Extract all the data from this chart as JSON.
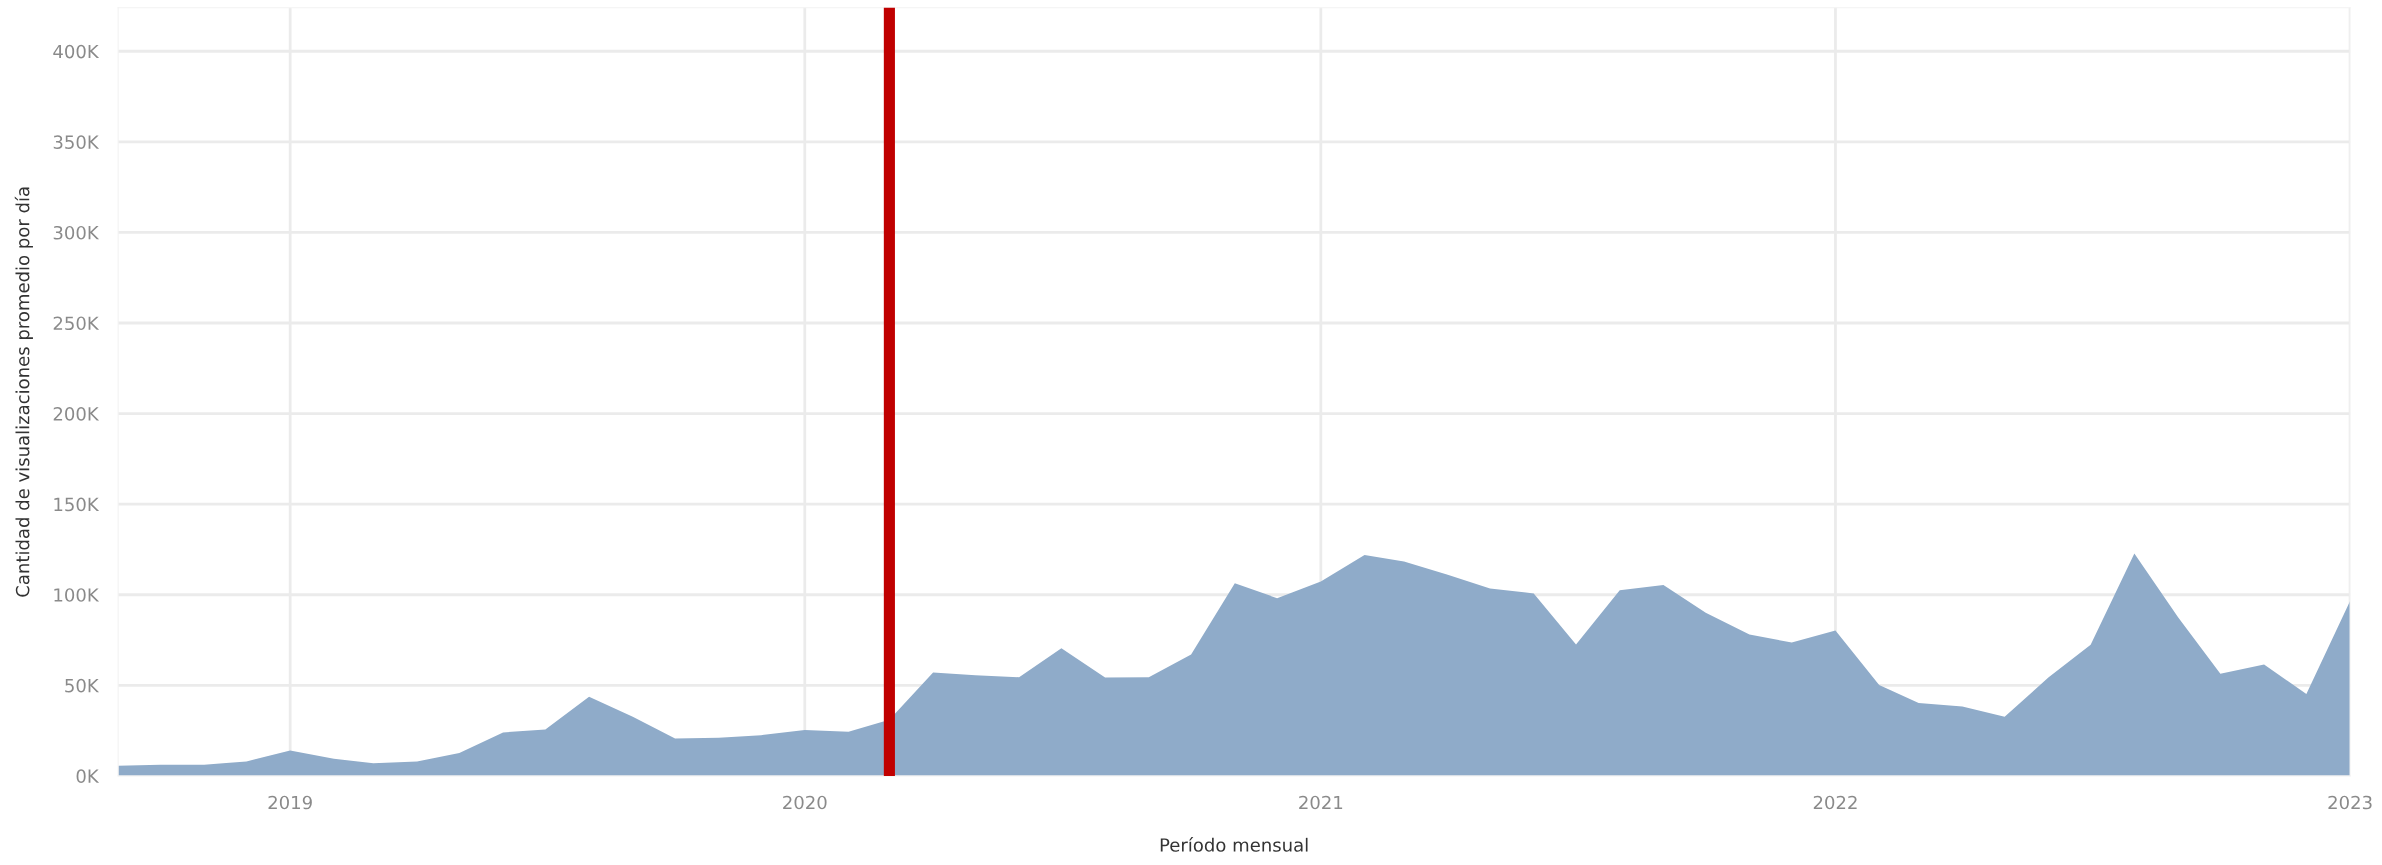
{
  "chart_data": {
    "type": "area",
    "xlabel": "Período mensual",
    "ylabel": "Cantidad de visualizaciones promedio por día",
    "x": [
      "2018-09",
      "2018-10",
      "2018-11",
      "2018-12",
      "2019-01",
      "2019-02",
      "2019-03",
      "2019-04",
      "2019-05",
      "2019-06",
      "2019-07",
      "2019-08",
      "2019-09",
      "2019-10",
      "2019-11",
      "2019-12",
      "2020-01",
      "2020-02",
      "2020-03",
      "2020-04",
      "2020-05",
      "2020-06",
      "2020-07",
      "2020-08",
      "2020-09",
      "2020-10",
      "2020-11",
      "2020-12",
      "2021-01",
      "2021-02",
      "2021-03",
      "2021-04",
      "2021-05",
      "2021-06",
      "2021-07",
      "2021-08",
      "2021-09",
      "2021-10",
      "2021-11",
      "2021-12",
      "2022-01",
      "2022-02",
      "2022-03",
      "2022-04",
      "2022-05",
      "2022-06",
      "2022-07",
      "2022-08",
      "2022-09",
      "2022-10",
      "2022-11",
      "2022-12",
      "2023-01"
    ],
    "series": [
      {
        "color": "#8fabc9",
        "values": [
          5600,
          6200,
          6200,
          8000,
          14000,
          9500,
          7000,
          8000,
          12600,
          24000,
          25600,
          43700,
          32600,
          20600,
          21000,
          22500,
          25300,
          24400,
          31000,
          57100,
          55500,
          54500,
          70400,
          54300,
          54500,
          67000,
          106400,
          98100,
          107300,
          121900,
          118400,
          111100,
          103500,
          100700,
          72600,
          102500,
          105400,
          90000,
          78000,
          73600,
          80200,
          50200,
          40200,
          38300,
          32700,
          54300,
          72400,
          122800,
          87600,
          56400,
          61500,
          45200,
          96600
        ]
      }
    ],
    "xlim": [
      "2018-09",
      "2023-01"
    ],
    "xticks": [
      "2019",
      "2020",
      "2021",
      "2022",
      "2023"
    ],
    "ylim": [
      0,
      424000
    ],
    "yticks": [
      {
        "value": 0,
        "label": "0K"
      },
      {
        "value": 50000,
        "label": "50K"
      },
      {
        "value": 100000,
        "label": "100K"
      },
      {
        "value": 150000,
        "label": "150K"
      },
      {
        "value": 200000,
        "label": "200K"
      },
      {
        "value": 250000,
        "label": "250K"
      },
      {
        "value": 300000,
        "label": "300K"
      },
      {
        "value": 350000,
        "label": "350K"
      },
      {
        "value": 400000,
        "label": "400K"
      }
    ],
    "ref_lines": [
      {
        "axis": "x",
        "value": "2020-03",
        "color": "#c00000"
      }
    ],
    "grid": true,
    "legend": false
  }
}
